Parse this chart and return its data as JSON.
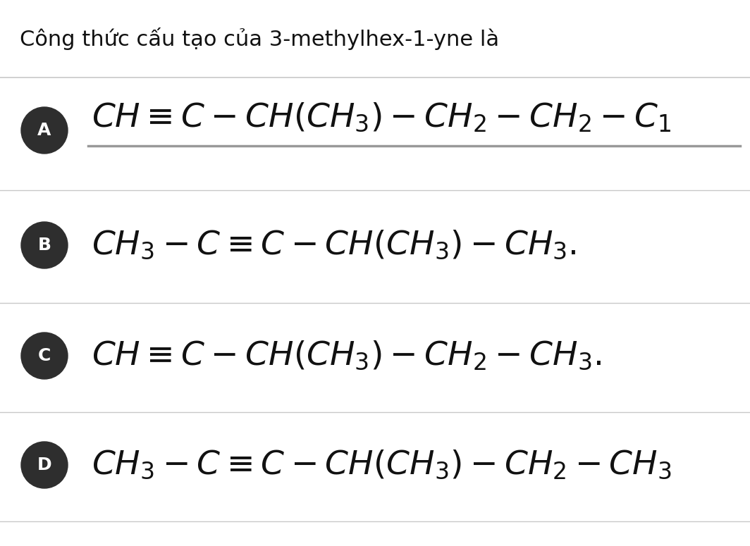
{
  "title": "Công thức cấu tạo của 3-methylhex-1-yne là",
  "title_fontsize": 22,
  "bg_color": "#ffffff",
  "divider_color": "#c8c8c8",
  "circle_color": "#2e2e2e",
  "circle_text_color": "#ffffff",
  "formula_color": "#111111",
  "options": [
    {
      "label": "A",
      "formula": "$CH \\equiv C - CH(CH_3) - CH_2 - CH_2 - C_1$",
      "has_underline": true,
      "underline_color": "#999999"
    },
    {
      "label": "B",
      "formula": "$CH_3 - C \\equiv C - CH(CH_3) - CH_3.$",
      "has_underline": false,
      "underline_color": null
    },
    {
      "label": "C",
      "formula": "$CH \\equiv C - CH(CH_3) - CH_2 - CH_3.$",
      "has_underline": false,
      "underline_color": null
    },
    {
      "label": "D",
      "formula": "$CH_3 - C \\equiv C - CH(CH_3) - CH_2 - CH_3$",
      "has_underline": false,
      "underline_color": null
    }
  ],
  "figsize": [
    10.64,
    7.75
  ],
  "dpi": 100
}
